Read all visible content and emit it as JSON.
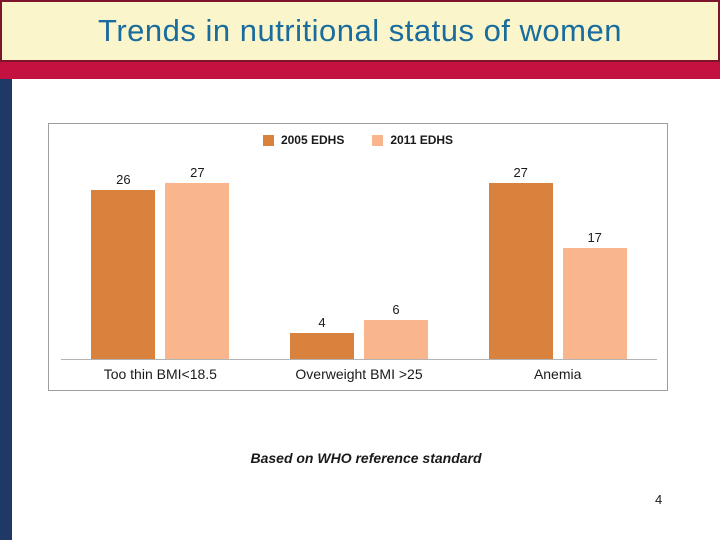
{
  "slide": {
    "title": "Trends in nutritional status of women",
    "caption": "Based on WHO reference standard",
    "page_number": "4"
  },
  "colors": {
    "title_text": "#1A6C9C",
    "title_bg": "#FBF5CB",
    "title_border": "#7D142C",
    "stripe": "#C31240",
    "sidebar": "#1F3866",
    "chart_border": "#9E9E9E",
    "axis_line": "#B3B3B3",
    "text": "#1A1A1A"
  },
  "chart_data": {
    "type": "bar",
    "categories": [
      "Too thin BMI<18.5",
      "Overweight BMI >25",
      "Anemia"
    ],
    "series": [
      {
        "name": "2005 EDHS",
        "values": [
          26,
          4,
          27
        ],
        "color": "#D9823E"
      },
      {
        "name": "2011 EDHS",
        "values": [
          27,
          6,
          17
        ],
        "color": "#F9B58C"
      }
    ],
    "title": "",
    "xlabel": "",
    "ylabel": "",
    "ylim": [
      0,
      31.5
    ],
    "grid": false,
    "legend_position": "top-center",
    "data_labels": true
  }
}
